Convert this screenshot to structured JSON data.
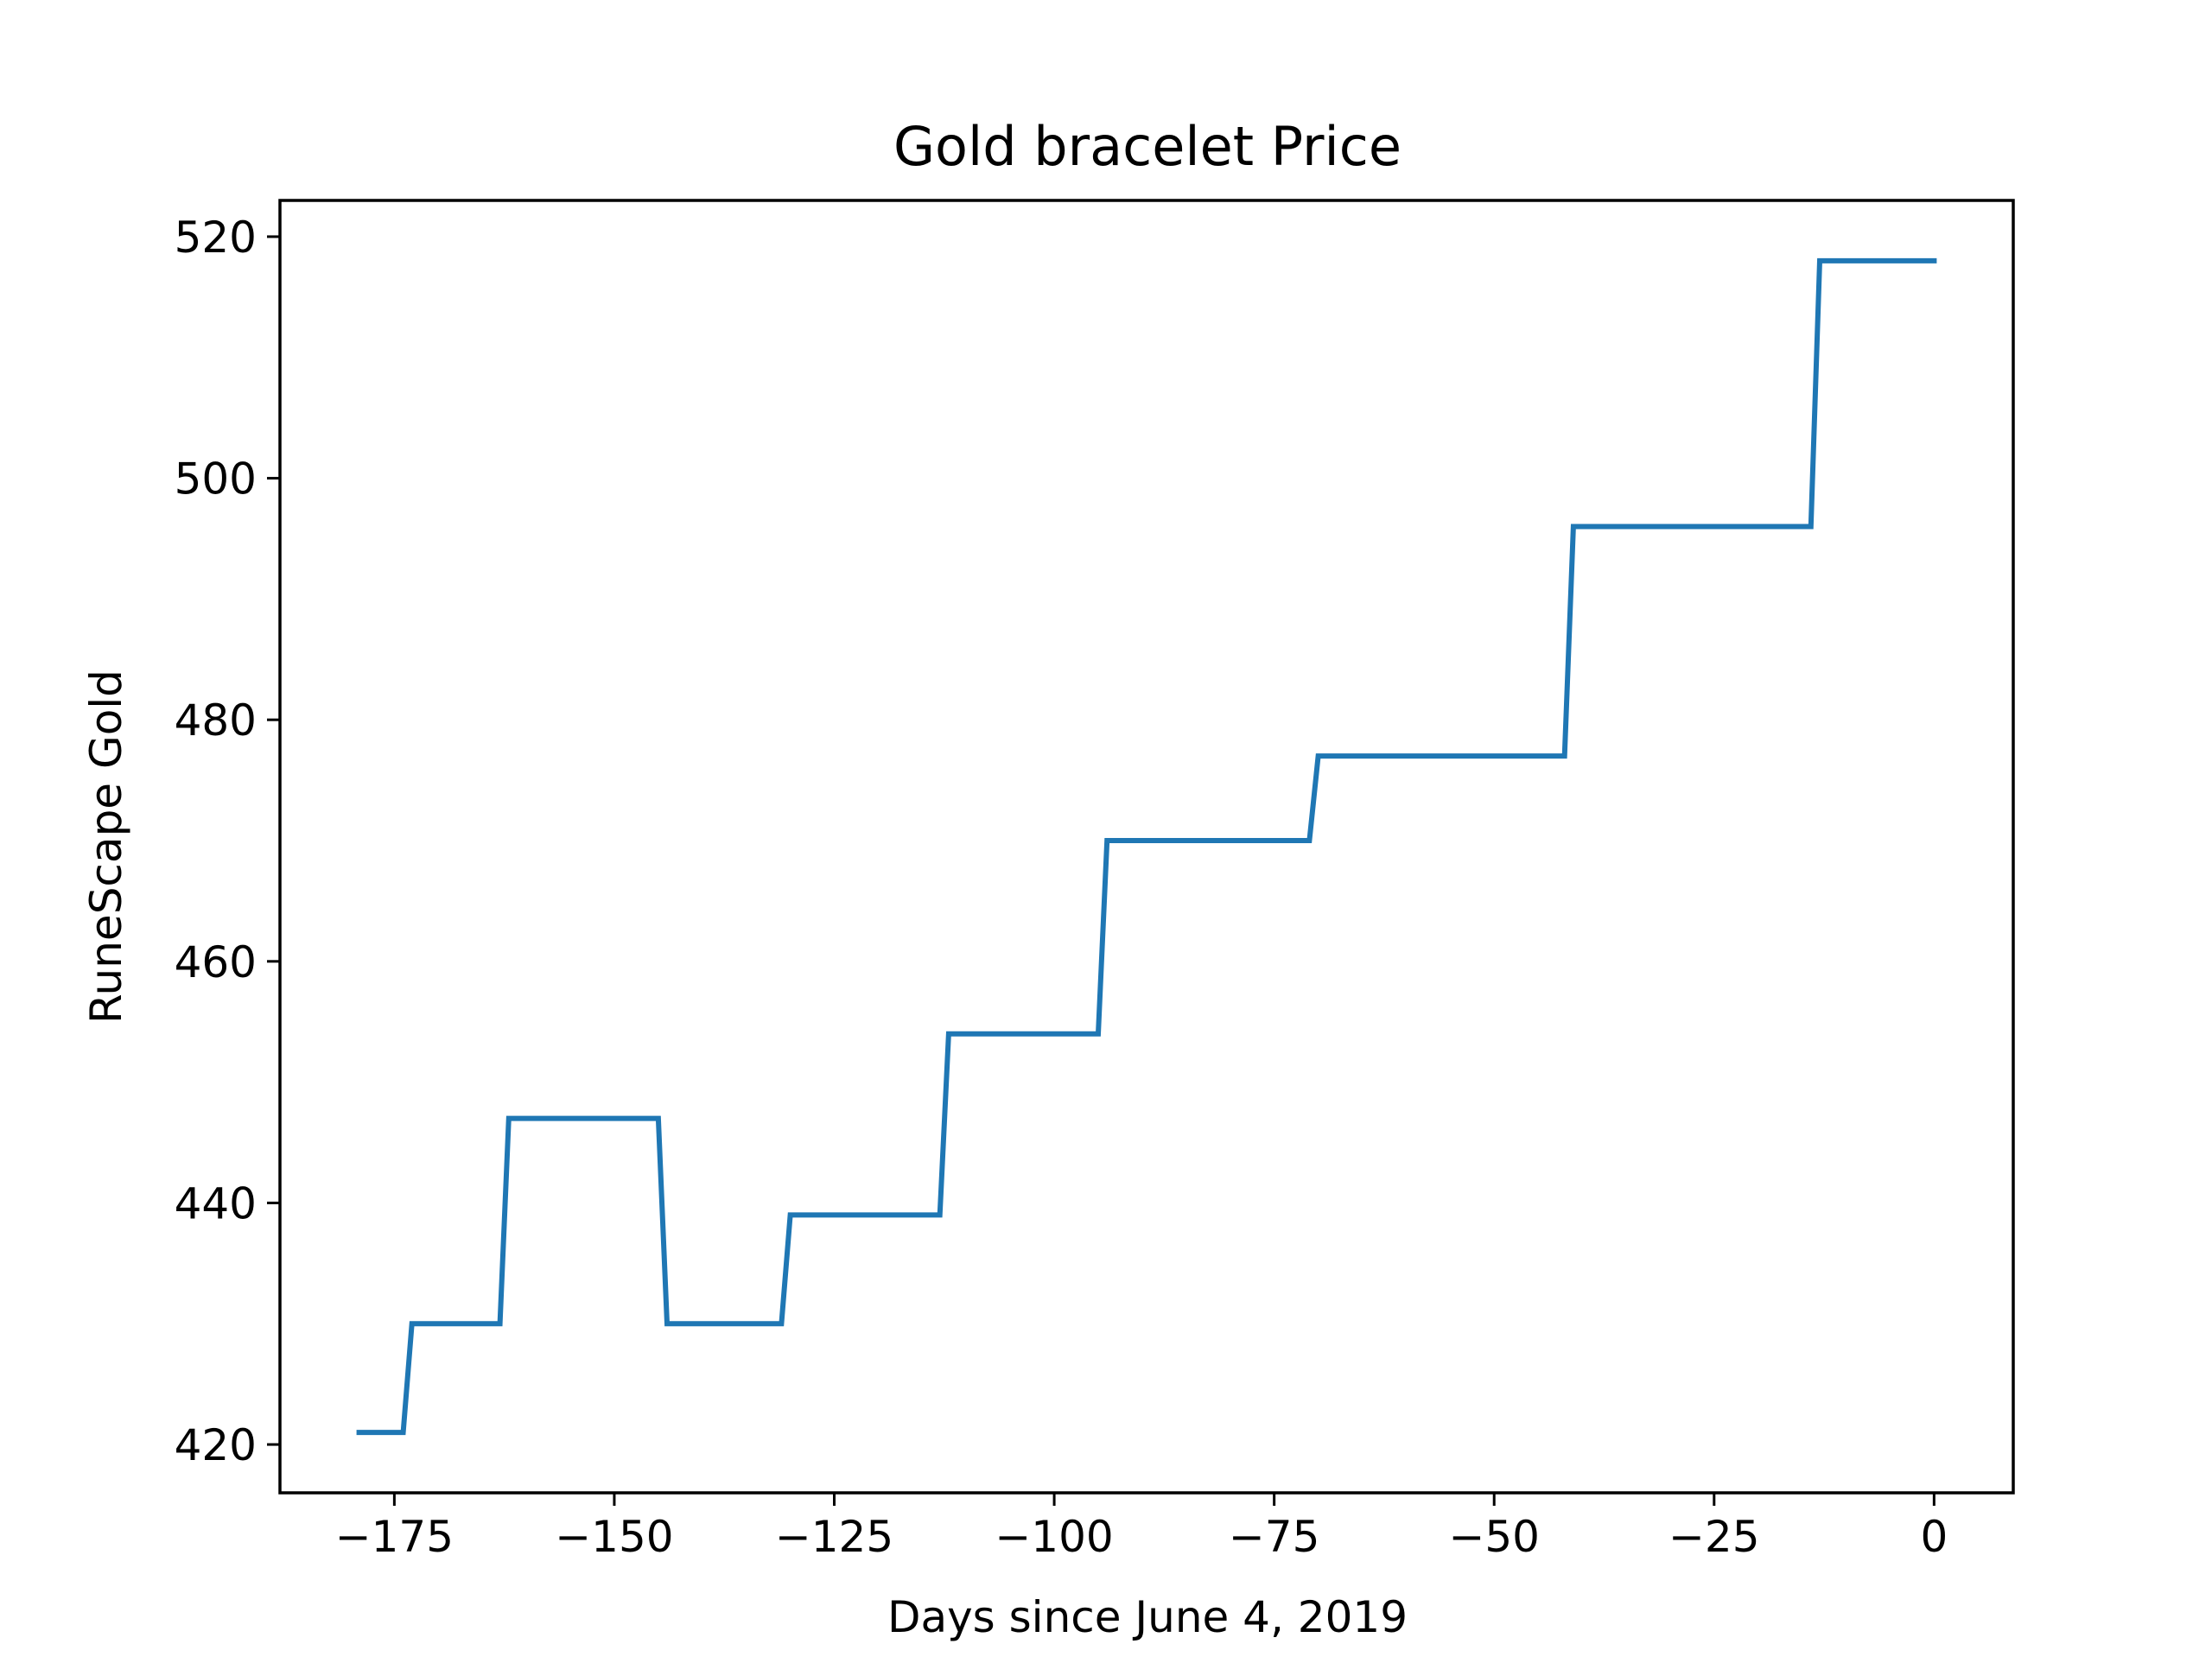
{
  "chart_data": {
    "type": "line",
    "title": "Gold bracelet Price",
    "xlabel": "Days since June 4, 2019",
    "ylabel": "RuneScape Gold",
    "xlim": [
      -188,
      9
    ],
    "ylim": [
      416,
      523
    ],
    "xticks": [
      -175,
      -150,
      -125,
      -100,
      -75,
      -50,
      -25,
      0
    ],
    "xtick_labels": [
      "−175",
      "−150",
      "−125",
      "−100",
      "−75",
      "−50",
      "−25",
      "0"
    ],
    "yticks": [
      420,
      440,
      460,
      480,
      500,
      520
    ],
    "ytick_labels": [
      "420",
      "440",
      "460",
      "480",
      "500",
      "520"
    ],
    "grid": false,
    "series_color": "#1f77b4",
    "series": [
      {
        "x": [
          -179,
          -174,
          -173,
          -163,
          -162,
          -145,
          -144,
          -131,
          -130,
          -113,
          -112,
          -95,
          -94,
          -71,
          -70,
          -42,
          -41,
          -14,
          -13,
          0
        ],
        "y": [
          421,
          421,
          430,
          430,
          447,
          447,
          430,
          430,
          439,
          439,
          454,
          454,
          470,
          470,
          477,
          477,
          496,
          496,
          518,
          518
        ]
      }
    ]
  }
}
